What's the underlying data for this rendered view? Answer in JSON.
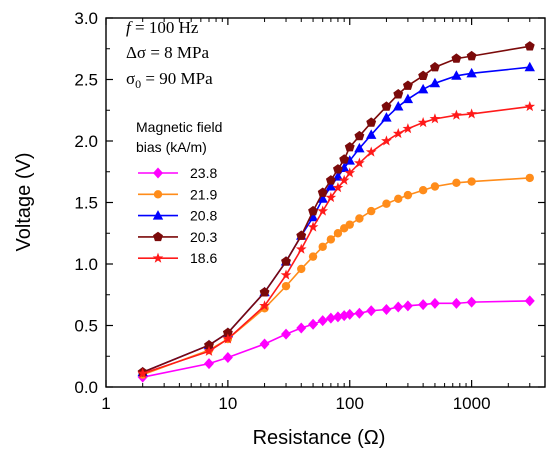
{
  "chart_data": {
    "type": "line",
    "xlabel": "Resistance (Ω)",
    "ylabel": "Voltage (V)",
    "x_scale": "log",
    "xlim": [
      1,
      4000
    ],
    "ylim": [
      0.0,
      3.0
    ],
    "x_ticks": [
      "1",
      "10",
      "100",
      "1000"
    ],
    "y_ticks": [
      "0.0",
      "0.5",
      "1.0",
      "1.5",
      "2.0",
      "2.5",
      "3.0"
    ],
    "grid": false,
    "annotations": [
      {
        "italic_symbol": "f",
        "text": " = 100 Hz"
      },
      {
        "text": "Δσ = 8 MPa"
      },
      {
        "symbol": "σ",
        "subscript": "0",
        "text": " = 90 MPa"
      }
    ],
    "legend": {
      "title_lines": [
        "Magnetic field",
        "bias (kA/m)"
      ],
      "placement": "left-middle"
    },
    "series": [
      {
        "name": "23.8",
        "color": "#ff00ff",
        "marker": "diamond",
        "x": [
          2,
          7,
          10,
          20,
          30,
          40,
          50,
          60,
          70,
          80,
          90,
          100,
          120,
          150,
          200,
          250,
          300,
          400,
          500,
          750,
          1000,
          3000
        ],
        "y": [
          0.08,
          0.19,
          0.24,
          0.35,
          0.43,
          0.48,
          0.51,
          0.54,
          0.56,
          0.57,
          0.58,
          0.59,
          0.6,
          0.62,
          0.63,
          0.65,
          0.66,
          0.67,
          0.68,
          0.68,
          0.69,
          0.7
        ]
      },
      {
        "name": "21.9",
        "color": "#ff8c1a",
        "marker": "circle",
        "x": [
          2,
          7,
          10,
          20,
          30,
          40,
          50,
          60,
          70,
          80,
          90,
          100,
          120,
          150,
          200,
          250,
          300,
          400,
          500,
          750,
          1000,
          3000
        ],
        "y": [
          0.1,
          0.3,
          0.39,
          0.64,
          0.82,
          0.96,
          1.06,
          1.14,
          1.2,
          1.25,
          1.29,
          1.32,
          1.37,
          1.43,
          1.49,
          1.53,
          1.56,
          1.6,
          1.63,
          1.66,
          1.67,
          1.7
        ]
      },
      {
        "name": "20.8",
        "color": "#0000ff",
        "marker": "triangle",
        "x": [
          2,
          7,
          10,
          20,
          30,
          40,
          50,
          60,
          70,
          80,
          90,
          100,
          120,
          150,
          200,
          250,
          300,
          400,
          500,
          750,
          1000,
          3000
        ],
        "y": [
          0.12,
          0.34,
          0.44,
          0.77,
          1.02,
          1.23,
          1.38,
          1.53,
          1.63,
          1.71,
          1.78,
          1.84,
          1.94,
          2.05,
          2.19,
          2.28,
          2.34,
          2.42,
          2.47,
          2.53,
          2.55,
          2.6
        ]
      },
      {
        "name": "20.3",
        "color": "#7b0a0a",
        "marker": "pentagon",
        "x": [
          2,
          7,
          10,
          20,
          30,
          40,
          50,
          60,
          70,
          80,
          90,
          100,
          120,
          150,
          200,
          250,
          300,
          400,
          500,
          750,
          1000,
          3000
        ],
        "y": [
          0.12,
          0.34,
          0.44,
          0.77,
          1.02,
          1.23,
          1.43,
          1.58,
          1.68,
          1.77,
          1.85,
          1.95,
          2.04,
          2.15,
          2.28,
          2.38,
          2.45,
          2.53,
          2.6,
          2.67,
          2.69,
          2.77
        ]
      },
      {
        "name": "18.6",
        "color": "#ff1a1a",
        "marker": "star",
        "x": [
          2,
          7,
          10,
          20,
          30,
          40,
          50,
          60,
          70,
          80,
          90,
          100,
          120,
          150,
          200,
          250,
          300,
          400,
          500,
          750,
          1000,
          3000
        ],
        "y": [
          0.11,
          0.29,
          0.39,
          0.66,
          0.91,
          1.12,
          1.3,
          1.43,
          1.54,
          1.62,
          1.68,
          1.74,
          1.82,
          1.91,
          2.0,
          2.06,
          2.1,
          2.15,
          2.18,
          2.21,
          2.22,
          2.28
        ]
      }
    ]
  }
}
